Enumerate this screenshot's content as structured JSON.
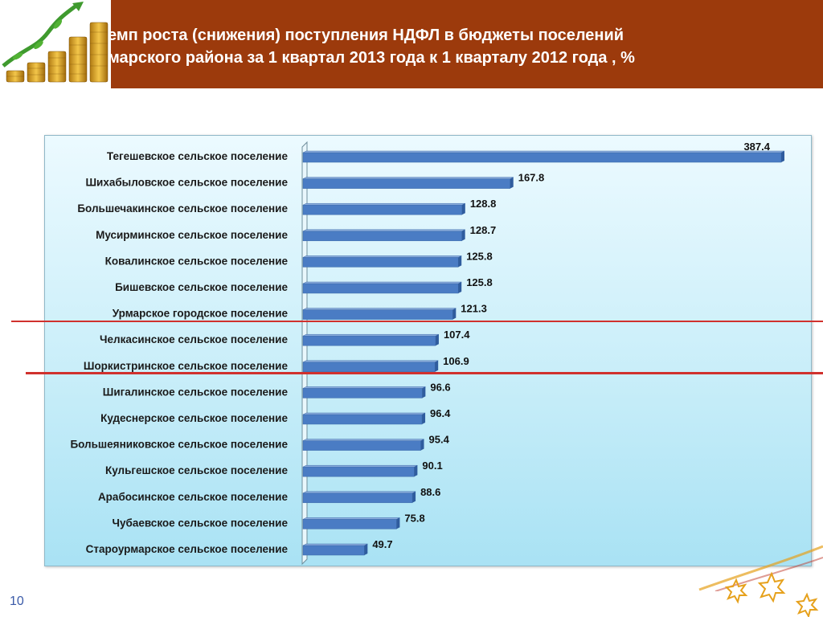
{
  "title_line1": "емп роста (снижения) поступления НДФЛ в бюджеты поселений",
  "title_line2": "марского района за  1 квартал 2013 года к 1 кварталу 2012 года , %",
  "page_number": "10",
  "colors": {
    "header": "#9c3a0c",
    "bar": "#4a7cc4",
    "bar_end": "#2f5c9e",
    "red_line": "#d0312d",
    "star": "#e6a11c"
  },
  "chart_data": {
    "type": "bar",
    "orientation": "horizontal",
    "categories": [
      "Тегешевское  сельское поселение",
      "Шихабыловское  сельское поселение",
      "Большечакинское  сельское поселение",
      "Мусирминское  сельское поселение",
      "Ковалинское  сельское поселение",
      "Бишевское  сельское поселение",
      "Урмарское  городское поселение",
      "Челкасинское  сельское поселение",
      "Шоркистринское  сельское поселение",
      "Шигалинское  сельское поселение",
      "Кудеснерское  сельское поселение",
      "Большеяниковское  сельское поселение",
      "Кульгешское  сельское поселение",
      "Арабосинское сельское поселение",
      "Чубаевское  сельское поселение",
      "Староурмарское  сельское поселение"
    ],
    "values": [
      387.4,
      167.8,
      128.8,
      128.7,
      125.8,
      125.8,
      121.3,
      107.4,
      106.9,
      96.6,
      96.4,
      95.4,
      90.1,
      88.6,
      75.8,
      49.7
    ],
    "value_labels": [
      "387.4",
      "167.8",
      "128.8",
      "128.7",
      "125.8",
      "125.8",
      "121.3",
      "107.4",
      "106.9",
      "96.6",
      "96.4",
      "95.4",
      "90.1",
      "88.6",
      "75.8",
      "49.7"
    ],
    "xlim": [
      0,
      387.4
    ],
    "grid": false,
    "legend": "none"
  }
}
